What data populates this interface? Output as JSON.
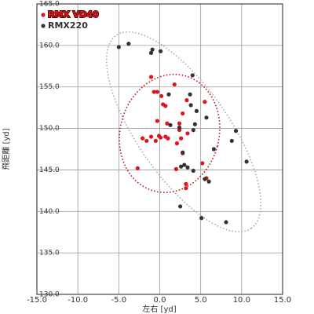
{
  "chart_data": {
    "type": "scatter",
    "x_label": "左右 [yd]",
    "y_label": "飛距離 [yd]",
    "xlim": [
      -15,
      15
    ],
    "ylim": [
      130,
      165
    ],
    "xticks": [
      {
        "value": -15,
        "label": "-15.0"
      },
      {
        "value": -10,
        "label": "-10.0"
      },
      {
        "value": -5,
        "label": "-5.0"
      },
      {
        "value": 0,
        "label": "0.0"
      },
      {
        "value": 5,
        "label": "5.0"
      },
      {
        "value": 10,
        "label": "10.0"
      },
      {
        "value": 15,
        "label": "15.0"
      }
    ],
    "yticks": [
      {
        "value": 130,
        "label": "130.0"
      },
      {
        "value": 135,
        "label": "135.0"
      },
      {
        "value": 140,
        "label": "140.0"
      },
      {
        "value": 145,
        "label": "145.0"
      },
      {
        "value": 150,
        "label": "150.0"
      },
      {
        "value": 155,
        "label": "155.0"
      },
      {
        "value": 160,
        "label": "160.0"
      },
      {
        "value": 165,
        "label": "165.0"
      }
    ],
    "grid": true,
    "legend": "upper-left",
    "series": [
      {
        "name": "RMX VD40",
        "color": "#e0141e",
        "x": [
          -1.05,
          1.8,
          -0.7,
          -0.3,
          0.2,
          0.4,
          0.7,
          3.3,
          5.5,
          2.8,
          -0.3,
          0.9,
          2.4,
          2.4,
          3.4,
          -2.1,
          -1.6,
          -1.05,
          -0.5,
          -0.1,
          0.1,
          0.7,
          1.0,
          2.1,
          2.6,
          2.8,
          5.2,
          2.0,
          -2.7,
          3.2,
          3.2,
          5.7
        ],
        "values": [
          156.2,
          155.3,
          154.4,
          154.4,
          153.9,
          152.9,
          152.7,
          153.4,
          153.2,
          151.8,
          150.9,
          150.6,
          150.6,
          149.8,
          149.4,
          148.8,
          148.5,
          149.0,
          148.5,
          149.1,
          148.9,
          149.0,
          148.8,
          148.2,
          148.8,
          147.0,
          145.8,
          145.1,
          145.2,
          143.3,
          142.8,
          144.0
        ]
      },
      {
        "name": "RMX220",
        "color": "#333333",
        "x": [
          -5.0,
          -3.8,
          -1.05,
          -0.9,
          0.1,
          4.0,
          1.1,
          3.7,
          3.8,
          4.5,
          5.7,
          1.3,
          2.4,
          4.3,
          4.1,
          9.3,
          8.8,
          6.6,
          2.8,
          3.0,
          2.6,
          3.4,
          4.1,
          5.5,
          6.0,
          10.6,
          2.5,
          5.1,
          8.1
        ],
        "values": [
          159.8,
          160.2,
          159.1,
          159.5,
          159.3,
          156.4,
          154.1,
          154.1,
          152.8,
          152.1,
          151.3,
          150.4,
          150.1,
          150.5,
          149.8,
          149.7,
          148.5,
          147.5,
          147.1,
          145.6,
          145.4,
          145.3,
          144.9,
          143.9,
          143.6,
          146.0,
          140.6,
          139.2,
          138.7
        ]
      }
    ]
  }
}
